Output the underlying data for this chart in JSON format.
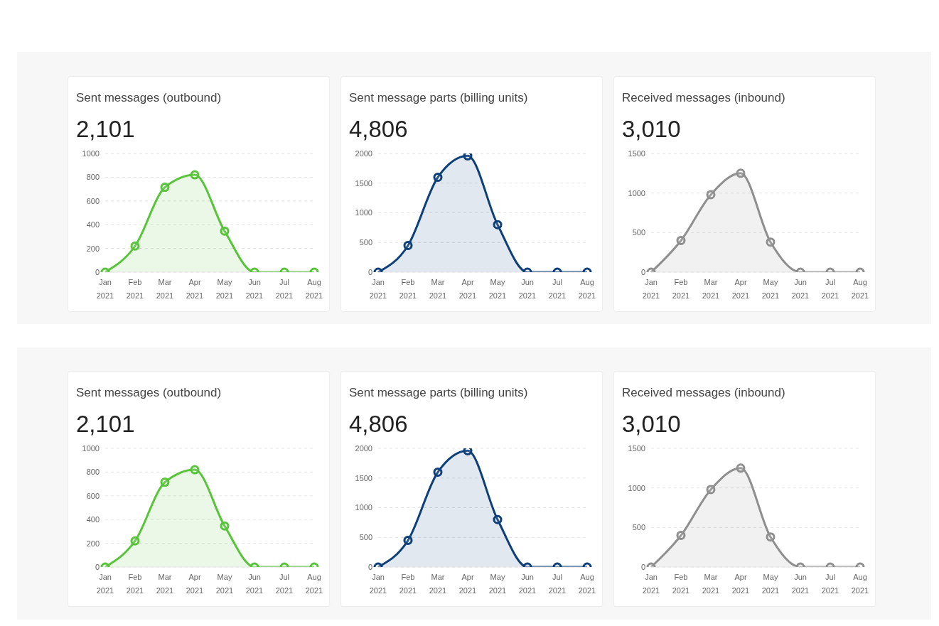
{
  "chart_data": [
    {
      "type": "area",
      "title": "Sent messages (outbound)",
      "subtitle": "2,101",
      "categories": [
        "Jan 2021",
        "Feb 2021",
        "Mar 2021",
        "Apr 2021",
        "May 2021",
        "Jun 2021",
        "Jul 2021",
        "Aug 2021"
      ],
      "series": [
        {
          "color": "#57c43a",
          "values": [
            0,
            220,
            715,
            820,
            346,
            0,
            0,
            0
          ]
        }
      ],
      "ylim": [
        0,
        1000
      ],
      "yticks": [
        0,
        200,
        400,
        600,
        800,
        1000
      ],
      "grid": "y",
      "marker": "circle",
      "legend": false
    },
    {
      "type": "area",
      "title": "Sent message parts (billing units)",
      "subtitle": "4,806",
      "categories": [
        "Jan 2021",
        "Feb 2021",
        "Mar 2021",
        "Apr 2021",
        "May 2021",
        "Jun 2021",
        "Jul 2021",
        "Aug 2021"
      ],
      "series": [
        {
          "color": "#0d3f7a",
          "values": [
            0,
            450,
            1600,
            1960,
            800,
            0,
            0,
            0
          ]
        }
      ],
      "ylim": [
        0,
        2000
      ],
      "yticks": [
        0,
        500,
        1000,
        1500,
        2000
      ],
      "grid": "y",
      "marker": "circle",
      "legend": false
    },
    {
      "type": "area",
      "title": "Received messages (inbound)",
      "subtitle": "3,010",
      "categories": [
        "Jan 2021",
        "Feb 2021",
        "Mar 2021",
        "Apr 2021",
        "May 2021",
        "Jun 2021",
        "Jul 2021",
        "Aug 2021"
      ],
      "series": [
        {
          "color": "#8f8f8f",
          "values": [
            0,
            400,
            980,
            1250,
            380,
            0,
            0,
            0
          ]
        }
      ],
      "ylim": [
        0,
        1500
      ],
      "yticks": [
        0,
        500,
        1000,
        1500
      ],
      "grid": "y",
      "marker": "circle",
      "legend": false
    },
    {
      "type": "area",
      "title": "Sent messages (outbound)",
      "subtitle": "2,101",
      "categories": [
        "Jan 2021",
        "Feb 2021",
        "Mar 2021",
        "Apr 2021",
        "May 2021",
        "Jun 2021",
        "Jul 2021",
        "Aug 2021"
      ],
      "series": [
        {
          "color": "#57c43a",
          "values": [
            0,
            220,
            715,
            820,
            346,
            0,
            0,
            0
          ]
        }
      ],
      "ylim": [
        0,
        1000
      ],
      "yticks": [
        0,
        200,
        400,
        600,
        800,
        1000
      ],
      "grid": "y",
      "marker": "circle",
      "legend": false
    },
    {
      "type": "area",
      "title": "Sent message parts (billing units)",
      "subtitle": "4,806",
      "categories": [
        "Jan 2021",
        "Feb 2021",
        "Mar 2021",
        "Apr 2021",
        "May 2021",
        "Jun 2021",
        "Jul 2021",
        "Aug 2021"
      ],
      "series": [
        {
          "color": "#0d3f7a",
          "values": [
            0,
            450,
            1600,
            1960,
            800,
            0,
            0,
            0
          ]
        }
      ],
      "ylim": [
        0,
        2000
      ],
      "yticks": [
        0,
        500,
        1000,
        1500,
        2000
      ],
      "grid": "y",
      "marker": "circle",
      "legend": false
    },
    {
      "type": "area",
      "title": "Received messages (inbound)",
      "subtitle": "3,010",
      "categories": [
        "Jan 2021",
        "Feb 2021",
        "Mar 2021",
        "Apr 2021",
        "May 2021",
        "Jun 2021",
        "Jul 2021",
        "Aug 2021"
      ],
      "series": [
        {
          "color": "#8f8f8f",
          "values": [
            0,
            400,
            980,
            1250,
            380,
            0,
            0,
            0
          ]
        }
      ],
      "ylim": [
        0,
        1500
      ],
      "yticks": [
        0,
        500,
        1000,
        1500
      ],
      "grid": "y",
      "marker": "circle",
      "legend": false
    }
  ]
}
